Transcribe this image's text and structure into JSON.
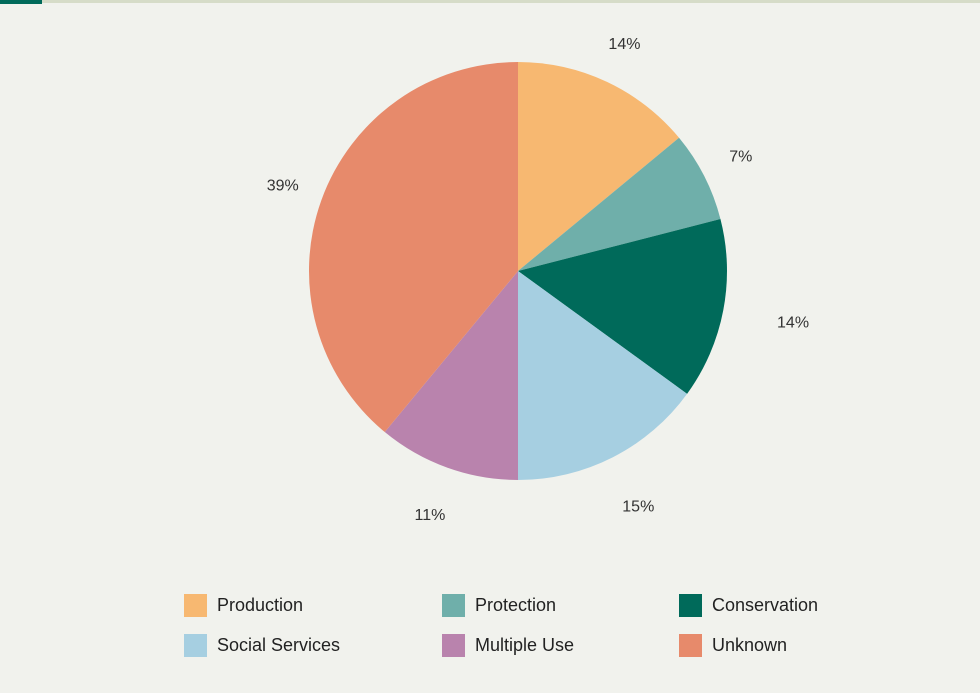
{
  "chart_data": {
    "type": "pie",
    "title": "",
    "categories": [
      "Production",
      "Protection",
      "Conservation",
      "Social Services",
      "Multiple Use",
      "Unknown"
    ],
    "values": [
      14,
      7,
      14,
      15,
      11,
      39
    ],
    "value_labels": [
      "14%",
      "7%",
      "14%",
      "15%",
      "11%",
      "39%"
    ],
    "colors": [
      "#f7b871",
      "#6fafaa",
      "#006a5a",
      "#a6cfe1",
      "#b983ad",
      "#e78a6b"
    ],
    "legend_position": "bottom"
  }
}
